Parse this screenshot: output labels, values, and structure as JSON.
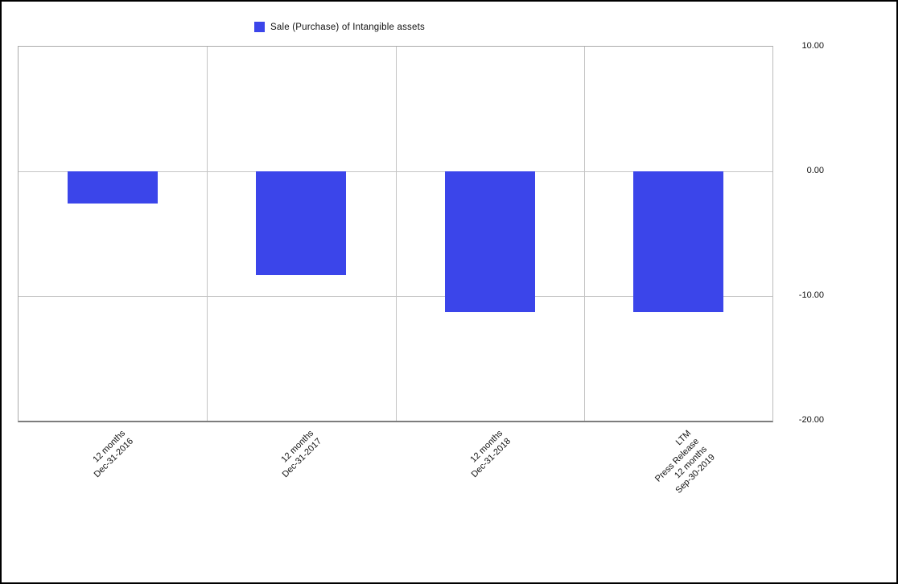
{
  "legend": {
    "label": "Sale (Purchase) of Intangible assets"
  },
  "chart_data": {
    "type": "bar",
    "title": "",
    "series_name": "Sale (Purchase) of Intangible assets",
    "categories": [
      [
        "12 months",
        "Dec-31-2016"
      ],
      [
        "12 months",
        "Dec-31-2017"
      ],
      [
        "12 months",
        "Dec-31-2018"
      ],
      [
        "LTM",
        "Press Release",
        "12 months",
        "Sep-30-2019"
      ]
    ],
    "values": [
      -2.6,
      -8.3,
      -11.3,
      -11.3
    ],
    "ylim": [
      -20,
      10
    ],
    "yticks": [
      10,
      0,
      -10,
      -20
    ],
    "ytick_labels": [
      "10.00",
      "0.00",
      "-10.00",
      "-20.00"
    ],
    "bar_color": "#3b45ea",
    "grid": true,
    "legend_position": "top"
  }
}
